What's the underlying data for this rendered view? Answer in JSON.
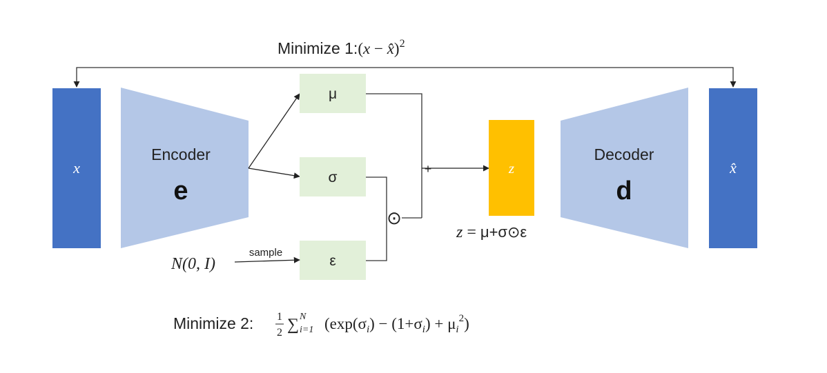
{
  "title_loss": {
    "prefix": "Minimize 1:",
    "formula_open": "(",
    "x": "x",
    "minus": " − ",
    "xhat": "x̂",
    "formula_close": ")",
    "power": "2"
  },
  "input_block": {
    "label": "x"
  },
  "output_block": {
    "label": "x̂"
  },
  "encoder": {
    "title": "Encoder",
    "symbol": "e"
  },
  "decoder": {
    "title": "Decoder",
    "symbol": "d"
  },
  "mu_box": {
    "label": "μ"
  },
  "sigma_box": {
    "label": "σ"
  },
  "epsilon_box": {
    "label": "ε"
  },
  "noise": {
    "label": "N(0, I)",
    "arrow_label": "sample"
  },
  "odot_symbol": "⊙",
  "plus_symbol": "+",
  "z_block": {
    "label": "z"
  },
  "z_equation": {
    "lhs": "z",
    "eq": " = ",
    "rhs": "μ+σ⊙ε"
  },
  "kl_loss": {
    "prefix": "Minimize 2:",
    "frac_num": "1",
    "frac_den": "2",
    "sum": "∑",
    "sum_upper": "N",
    "sum_lower": "i=1",
    "body_a": "(exp(σ",
    "sub_a": "i",
    "body_b": ") − (1+σ",
    "sub_b": "i",
    "body_c": ") + μ",
    "sub_c": "i",
    "sup_c": "2",
    "body_d": ")"
  },
  "colors": {
    "dark_blue": "#4472c4",
    "light_blue": "#b4c7e7",
    "light_green": "#e2f0d9",
    "gold": "#ffc000",
    "line": "#333333"
  }
}
